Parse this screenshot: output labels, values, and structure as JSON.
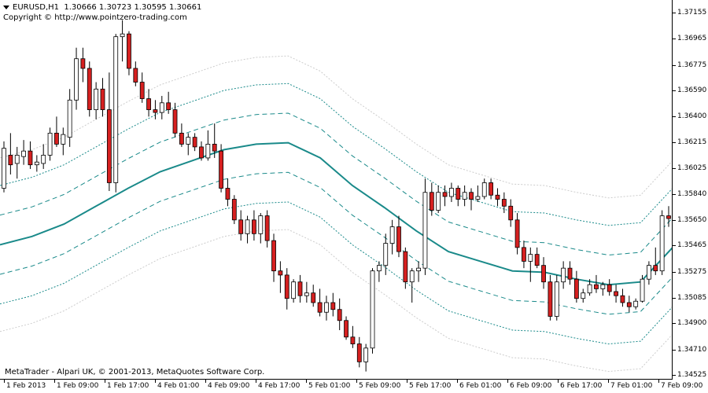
{
  "header": {
    "symbol": "EURUSD,H1",
    "ohlc": "1.30666 1.30723 1.30595 1.30661",
    "copyright": "Copyright © http://www.pointzero-trading.com"
  },
  "footer": {
    "note": "MetaTrader - Alpari UK, © 2001-2013, MetaQuotes Software Corp."
  },
  "colors": {
    "bull": "#ffffff",
    "bear": "#d62020",
    "wick": "#000000",
    "mid_band": "#1a8a8a",
    "inner_band": "#1a8a8a",
    "outer_band": "#cccccc"
  },
  "chart_data": {
    "type": "candlestick",
    "symbol": "EURUSD",
    "timeframe": "H1",
    "ylim": [
      1.34525,
      1.37155
    ],
    "price_labels": [
      "1.37155",
      "1.36965",
      "1.36775",
      "1.36590",
      "1.36400",
      "1.36215",
      "1.36025",
      "1.35840",
      "1.35650",
      "1.35465",
      "1.35275",
      "1.35085",
      "1.34900",
      "1.34710",
      "1.34525"
    ],
    "time_labels": [
      "1 Feb 2013",
      "1 Feb 09:00",
      "1 Feb 17:00",
      "4 Feb 01:00",
      "4 Feb 09:00",
      "4 Feb 17:00",
      "5 Feb 01:00",
      "5 Feb 09:00",
      "5 Feb 17:00",
      "6 Feb 01:00",
      "6 Feb 09:00",
      "6 Feb 17:00",
      "7 Feb 01:00",
      "7 Feb 09:00"
    ],
    "candles": [
      [
        1.3588,
        1.3622,
        1.3585,
        1.3617
      ],
      [
        1.3612,
        1.3628,
        1.3598,
        1.3605
      ],
      [
        1.3606,
        1.3618,
        1.3595,
        1.3612
      ],
      [
        1.3611,
        1.3623,
        1.3605,
        1.3615
      ],
      [
        1.3615,
        1.3622,
        1.3602,
        1.3605
      ],
      [
        1.3605,
        1.3612,
        1.36,
        1.3607
      ],
      [
        1.3606,
        1.362,
        1.3602,
        1.3612
      ],
      [
        1.3612,
        1.3632,
        1.3608,
        1.3628
      ],
      [
        1.3628,
        1.364,
        1.3618,
        1.362
      ],
      [
        1.362,
        1.3632,
        1.3612,
        1.3627
      ],
      [
        1.3625,
        1.366,
        1.3618,
        1.3652
      ],
      [
        1.3652,
        1.369,
        1.3645,
        1.3682
      ],
      [
        1.3682,
        1.369,
        1.3665,
        1.3675
      ],
      [
        1.3675,
        1.368,
        1.364,
        1.3645
      ],
      [
        1.3645,
        1.3665,
        1.3638,
        1.366
      ],
      [
        1.366,
        1.3668,
        1.364,
        1.3645
      ],
      [
        1.3645,
        1.3672,
        1.3586,
        1.3592
      ],
      [
        1.3592,
        1.37,
        1.3585,
        1.3698
      ],
      [
        1.3698,
        1.371,
        1.368,
        1.37
      ],
      [
        1.37,
        1.3702,
        1.367,
        1.3675
      ],
      [
        1.3675,
        1.368,
        1.3662,
        1.3665
      ],
      [
        1.3665,
        1.3672,
        1.365,
        1.3653
      ],
      [
        1.3653,
        1.366,
        1.364,
        1.3645
      ],
      [
        1.3645,
        1.3652,
        1.3638,
        1.3643
      ],
      [
        1.3643,
        1.3655,
        1.3638,
        1.365
      ],
      [
        1.365,
        1.3658,
        1.3642,
        1.3645
      ],
      [
        1.3645,
        1.365,
        1.3625,
        1.3628
      ],
      [
        1.3628,
        1.3635,
        1.3618,
        1.362
      ],
      [
        1.362,
        1.3628,
        1.3612,
        1.3625
      ],
      [
        1.3625,
        1.3628,
        1.3615,
        1.3618
      ],
      [
        1.3618,
        1.3622,
        1.3608,
        1.361
      ],
      [
        1.361,
        1.363,
        1.3608,
        1.362
      ],
      [
        1.362,
        1.3635,
        1.361,
        1.3615
      ],
      [
        1.3615,
        1.362,
        1.3585,
        1.3588
      ],
      [
        1.3588,
        1.3595,
        1.3575,
        1.358
      ],
      [
        1.358,
        1.3583,
        1.3562,
        1.3565
      ],
      [
        1.3565,
        1.3572,
        1.355,
        1.3555
      ],
      [
        1.3555,
        1.3568,
        1.3548,
        1.3565
      ],
      [
        1.3565,
        1.3572,
        1.355,
        1.3555
      ],
      [
        1.3555,
        1.357,
        1.3548,
        1.3568
      ],
      [
        1.3568,
        1.3572,
        1.3545,
        1.355
      ],
      [
        1.355,
        1.3555,
        1.352,
        1.3528
      ],
      [
        1.3528,
        1.3535,
        1.3512,
        1.3525
      ],
      [
        1.3525,
        1.353,
        1.35,
        1.3508
      ],
      [
        1.3508,
        1.3522,
        1.3505,
        1.352
      ],
      [
        1.352,
        1.3525,
        1.3505,
        1.351
      ],
      [
        1.351,
        1.352,
        1.3505,
        1.3512
      ],
      [
        1.3512,
        1.3518,
        1.3502,
        1.3505
      ],
      [
        1.3505,
        1.3515,
        1.3495,
        1.3498
      ],
      [
        1.3498,
        1.351,
        1.3492,
        1.3505
      ],
      [
        1.3505,
        1.3512,
        1.3495,
        1.35
      ],
      [
        1.35,
        1.3508,
        1.3485,
        1.3492
      ],
      [
        1.3492,
        1.3495,
        1.3478,
        1.348
      ],
      [
        1.348,
        1.3488,
        1.3472,
        1.3475
      ],
      [
        1.3475,
        1.348,
        1.3458,
        1.3462
      ],
      [
        1.3462,
        1.3475,
        1.3455,
        1.3472
      ],
      [
        1.3472,
        1.353,
        1.3468,
        1.3528
      ],
      [
        1.3528,
        1.3535,
        1.352,
        1.3532
      ],
      [
        1.3532,
        1.3555,
        1.3525,
        1.3548
      ],
      [
        1.3548,
        1.3565,
        1.354,
        1.356
      ],
      [
        1.356,
        1.3568,
        1.3538,
        1.3542
      ],
      [
        1.3542,
        1.3545,
        1.3515,
        1.352
      ],
      [
        1.352,
        1.353,
        1.3505,
        1.3528
      ],
      [
        1.3528,
        1.3535,
        1.352,
        1.353
      ],
      [
        1.353,
        1.3595,
        1.3525,
        1.3585
      ],
      [
        1.3585,
        1.3592,
        1.3568,
        1.3572
      ],
      [
        1.3572,
        1.359,
        1.357,
        1.3585
      ],
      [
        1.3585,
        1.359,
        1.3575,
        1.3582
      ],
      [
        1.3582,
        1.3592,
        1.3578,
        1.3588
      ],
      [
        1.3588,
        1.359,
        1.3575,
        1.358
      ],
      [
        1.358,
        1.359,
        1.3575,
        1.3585
      ],
      [
        1.3585,
        1.3588,
        1.3572,
        1.358
      ],
      [
        1.358,
        1.359,
        1.3578,
        1.3582
      ],
      [
        1.3582,
        1.3595,
        1.358,
        1.3592
      ],
      [
        1.3592,
        1.3595,
        1.358,
        1.3583
      ],
      [
        1.3583,
        1.3588,
        1.3575,
        1.358
      ],
      [
        1.358,
        1.3585,
        1.357,
        1.3575
      ],
      [
        1.3575,
        1.358,
        1.356,
        1.3565
      ],
      [
        1.3565,
        1.357,
        1.354,
        1.3545
      ],
      [
        1.3545,
        1.355,
        1.353,
        1.3535
      ],
      [
        1.3535,
        1.3545,
        1.352,
        1.354
      ],
      [
        1.354,
        1.3545,
        1.353,
        1.3532
      ],
      [
        1.3532,
        1.3538,
        1.3515,
        1.352
      ],
      [
        1.352,
        1.3525,
        1.3492,
        1.3495
      ],
      [
        1.3495,
        1.3525,
        1.3492,
        1.352
      ],
      [
        1.352,
        1.3535,
        1.3515,
        1.353
      ],
      [
        1.353,
        1.3535,
        1.3518,
        1.3522
      ],
      [
        1.3522,
        1.3528,
        1.3505,
        1.3508
      ],
      [
        1.3508,
        1.3515,
        1.3505,
        1.3512
      ],
      [
        1.3512,
        1.3522,
        1.351,
        1.3518
      ],
      [
        1.3518,
        1.3525,
        1.3512,
        1.3515
      ],
      [
        1.3515,
        1.352,
        1.351,
        1.3518
      ],
      [
        1.3518,
        1.3522,
        1.351,
        1.3513
      ],
      [
        1.3513,
        1.3518,
        1.3505,
        1.351
      ],
      [
        1.351,
        1.3515,
        1.3502,
        1.3505
      ],
      [
        1.3505,
        1.351,
        1.3498,
        1.3502
      ],
      [
        1.3502,
        1.3508,
        1.35,
        1.3506
      ],
      [
        1.3506,
        1.3525,
        1.3505,
        1.3522
      ],
      [
        1.3522,
        1.3535,
        1.3518,
        1.3532
      ],
      [
        1.3532,
        1.3545,
        1.3525,
        1.3528
      ],
      [
        1.3528,
        1.3572,
        1.3525,
        1.3568
      ],
      [
        1.3568,
        1.3575,
        1.356,
        1.3566
      ]
    ],
    "bands": {
      "mid": [
        1.3547,
        1.3553,
        1.3562,
        1.3575,
        1.3588,
        1.36,
        1.3608,
        1.3616,
        1.362,
        1.3621,
        1.361,
        1.359,
        1.3574,
        1.3557,
        1.3542,
        1.3535,
        1.3528,
        1.3527,
        1.3522,
        1.3518,
        1.352,
        1.3545
      ],
      "inner": 0.00215,
      "mid2": 0.0043,
      "outer": 0.0063
    }
  }
}
